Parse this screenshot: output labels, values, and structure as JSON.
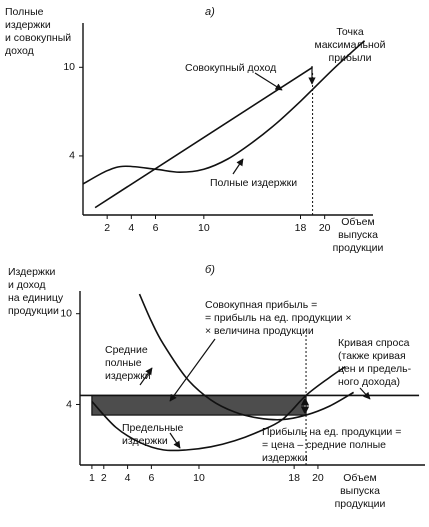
{
  "chart_data": [
    {
      "type": "line",
      "title": "а)",
      "y_label": [
        "Полные",
        "издержки",
        "и совокупный",
        "доход"
      ],
      "x_label": [
        "Объем",
        "выпуска",
        "продукции"
      ],
      "xlim": [
        0,
        24
      ],
      "ylim": [
        0,
        13
      ],
      "xticks": [
        2,
        4,
        6,
        10,
        18,
        20
      ],
      "yticks": [
        4,
        10
      ],
      "marker_x": 19,
      "series": [
        {
          "name": "Совокупный доход",
          "color": "#111111",
          "x": [
            1,
            19
          ],
          "values": [
            0.5,
            10
          ]
        },
        {
          "name": "Полные издержки",
          "color": "#111111",
          "x": [
            0,
            2,
            3.5,
            6,
            8,
            10,
            12,
            14,
            16,
            18,
            19,
            21,
            23.3
          ],
          "values": [
            2.1,
            3.0,
            3.3,
            3.1,
            2.9,
            3.1,
            3.8,
            4.9,
            6.2,
            7.7,
            8.5,
            10.1,
            11.8
          ]
        }
      ],
      "annotations": [
        [
          "Точка",
          "максимальной",
          "прибыли"
        ]
      ]
    },
    {
      "type": "line",
      "title": "б)",
      "y_label": [
        "Издержки",
        "и доход",
        "на единицу",
        "продукции"
      ],
      "x_label": [
        "Объем",
        "выпуска",
        "продукции"
      ],
      "xlim": [
        0,
        29
      ],
      "ylim": [
        0,
        11.5
      ],
      "xticks": [
        1,
        2,
        4,
        6,
        10,
        18,
        20
      ],
      "yticks": [
        4,
        10
      ],
      "marker_x": 19,
      "shaded": {
        "x": [
          1,
          19
        ],
        "y": [
          3.3,
          4.6
        ],
        "color": "#4d4d4d"
      },
      "series": [
        {
          "color": "#111111",
          "x": [
            0,
            28.5
          ],
          "values": [
            4.6,
            4.6
          ]
        },
        {
          "color": "#111111",
          "x": [
            5,
            6,
            7,
            9,
            11,
            13,
            15,
            17,
            19,
            21,
            23
          ],
          "values": [
            11.3,
            9.5,
            8.0,
            5.7,
            4.3,
            3.5,
            3.1,
            3.0,
            3.3,
            3.9,
            4.8
          ]
        },
        {
          "color": "#111111",
          "x": [
            1,
            3,
            5,
            7,
            9,
            11,
            13,
            15,
            17,
            19,
            21,
            22.3
          ],
          "values": [
            4.2,
            2.5,
            1.5,
            1.0,
            1.0,
            1.2,
            1.6,
            2.2,
            3.0,
            4.6,
            5.8,
            6.5
          ]
        }
      ],
      "annotations": [
        [
          "Совокупная прибыль =",
          "= прибыль на ед. продукции ×",
          "× величина продукции"
        ],
        [
          "Средние",
          "полные",
          "издержки"
        ],
        [
          "Кривая спроса",
          "(также кривая",
          "цен и предель-",
          "ного дохода)"
        ],
        [
          "Предельные",
          "издержки"
        ],
        [
          "Прибыль на ед. продукции =",
          "= цена – средние полные",
          "издержки"
        ]
      ]
    }
  ]
}
